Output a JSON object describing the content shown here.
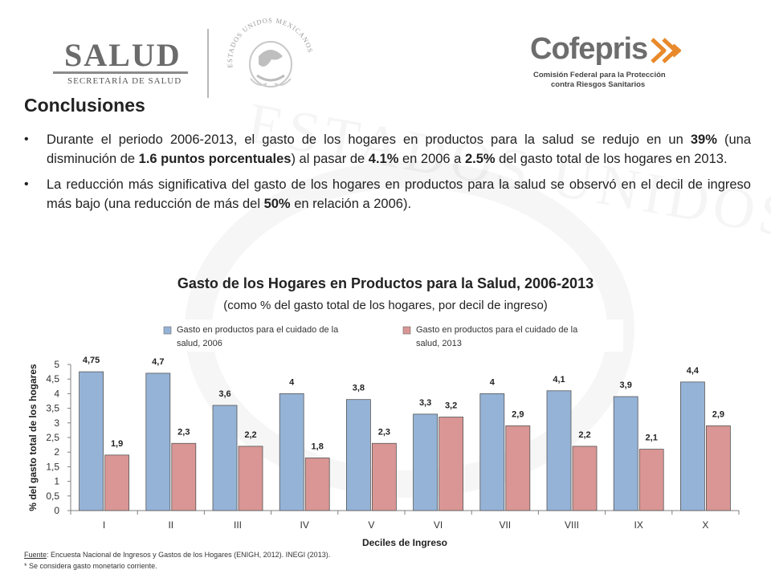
{
  "header": {
    "salud_title": "SALUD",
    "salud_subtitle": "SECRETARÍA DE SALUD",
    "seal_text": "ESTADOS UNIDOS MEXICANOS",
    "cofepris_name": "Cofepris",
    "cofepris_sub_1": "Comisión Federal para la Protección",
    "cofepris_sub_2": "contra Riesgos Sanitarios"
  },
  "slide": {
    "title": "Conclusiones",
    "bullets": [
      [
        {
          "t": "Durante el periodo 2006-2013, el gasto de los hogares en productos para la salud se redujo en un ",
          "b": false
        },
        {
          "t": "39%",
          "b": true
        },
        {
          "t": " (una disminución de ",
          "b": false
        },
        {
          "t": "1.6 puntos porcentuales",
          "b": true
        },
        {
          "t": ") al pasar de ",
          "b": false
        },
        {
          "t": "4.1%",
          "b": true
        },
        {
          "t": " en 2006 a ",
          "b": false
        },
        {
          "t": "2.5%",
          "b": true
        },
        {
          "t": " del gasto total de los hogares en 2013.",
          "b": false
        }
      ],
      [
        {
          "t": "La reducción más significativa del gasto de los hogares en productos para la salud se observó en el decil de ingreso más bajo (una reducción de más del ",
          "b": false
        },
        {
          "t": "50%",
          "b": true
        },
        {
          "t": " en relación a 2006).",
          "b": false
        }
      ]
    ]
  },
  "chart_data": {
    "type": "bar",
    "title": "Gasto de los Hogares en Productos para la Salud, 2006-2013",
    "subtitle": "(como % del gasto total de los hogares, por decil de ingreso)",
    "xlabel": "Deciles de Ingreso",
    "ylabel": "% del gasto total de los hogares",
    "categories": [
      "I",
      "II",
      "III",
      "IV",
      "V",
      "VI",
      "VII",
      "VIII",
      "IX",
      "X"
    ],
    "ylim": [
      0,
      5
    ],
    "yticks": [
      "0",
      "0,5",
      "1",
      "1,5",
      "2",
      "2,5",
      "3",
      "3,5",
      "4",
      "4,5",
      "5"
    ],
    "series": [
      {
        "name": "Gasto en productos para el cuidado de la salud, 2006",
        "legend_lines": [
          "Gasto en productos para el cuidado de la",
          "salud, 2006"
        ],
        "color": "#95b3d7",
        "values": [
          4.75,
          4.7,
          3.6,
          4.0,
          3.8,
          3.3,
          4.0,
          4.1,
          3.9,
          4.4
        ],
        "labels": [
          "4,75",
          "4,7",
          "3,6",
          "4",
          "3,8",
          "3,3",
          "4",
          "4,1",
          "3,9",
          "4,4"
        ]
      },
      {
        "name": "Gasto en productos para el cuidado de la salud, 2013",
        "legend_lines": [
          "Gasto en productos para el cuidado de la",
          "salud, 2013"
        ],
        "color": "#d99694",
        "values": [
          1.9,
          2.3,
          2.2,
          1.8,
          2.3,
          3.2,
          2.9,
          2.2,
          2.1,
          2.9
        ],
        "labels": [
          "1,9",
          "2,3",
          "2,2",
          "1,8",
          "2,3",
          "3,2",
          "2,9",
          "2,2",
          "2,1",
          "2,9"
        ]
      }
    ],
    "grid": false,
    "legend_position": "top"
  },
  "footer": {
    "source_label": "Fuente",
    "source_text": ": Encuesta Nacional de Ingresos y Gastos de los Hogares (ENIGH, 2012). INEGI (2013).",
    "note": "* Se considera gasto monetario corriente."
  }
}
